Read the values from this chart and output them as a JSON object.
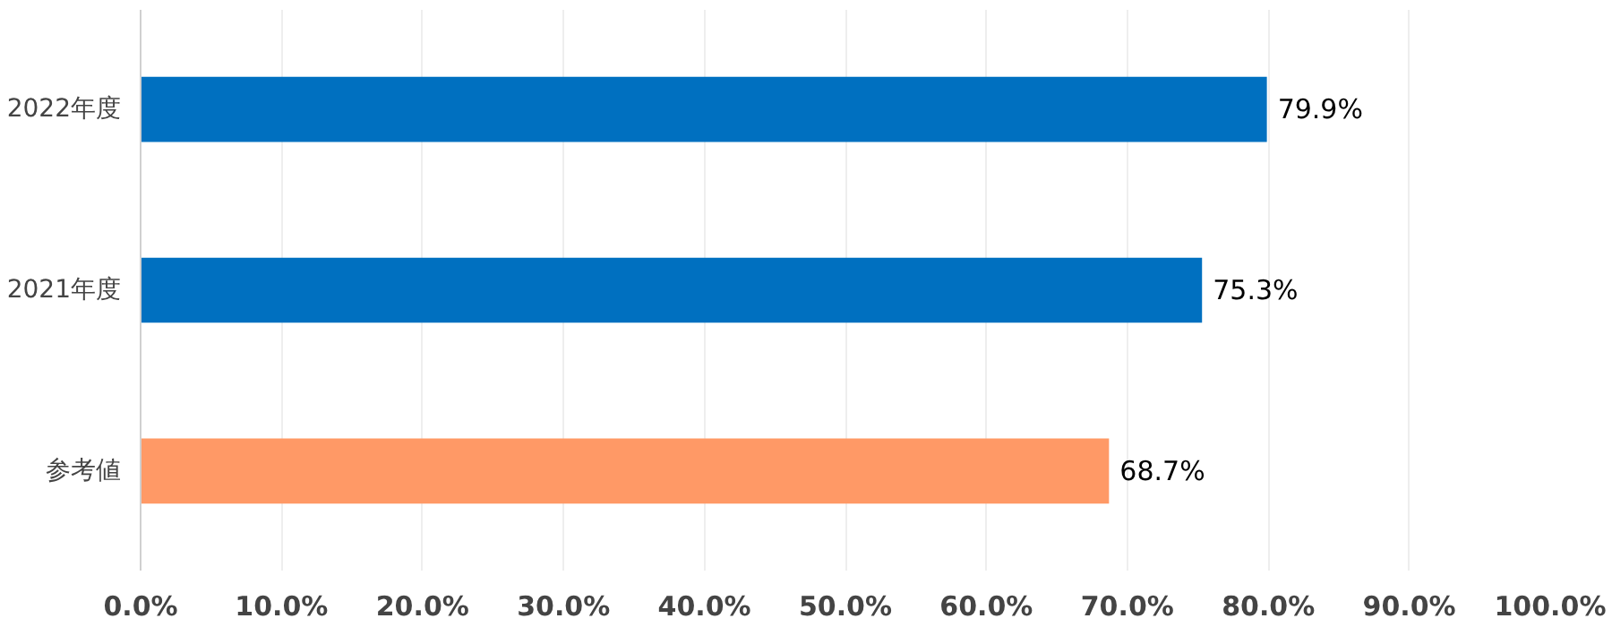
{
  "chart_data": {
    "type": "bar",
    "orientation": "horizontal",
    "categories": [
      "2022年度",
      "2021年度",
      "参考値"
    ],
    "values": [
      79.9,
      75.3,
      68.7
    ],
    "colors": [
      "#0070c0",
      "#0070c0",
      "#ff9966"
    ],
    "value_labels": [
      "79.9%",
      "75.3%",
      "68.7%"
    ],
    "xlim": [
      0,
      100
    ],
    "xticks": [
      {
        "value": 0,
        "label": "0.0%"
      },
      {
        "value": 10,
        "label": "10.0%"
      },
      {
        "value": 20,
        "label": "20.0%"
      },
      {
        "value": 30,
        "label": "30.0%"
      },
      {
        "value": 40,
        "label": "40.0%"
      },
      {
        "value": 50,
        "label": "50.0%"
      },
      {
        "value": 60,
        "label": "60.0%"
      },
      {
        "value": 70,
        "label": "70.0%"
      },
      {
        "value": 80,
        "label": "80.0%"
      },
      {
        "value": 90,
        "label": "90.0%"
      },
      {
        "value": 100,
        "label": "100.0%"
      }
    ],
    "grid": "x"
  }
}
